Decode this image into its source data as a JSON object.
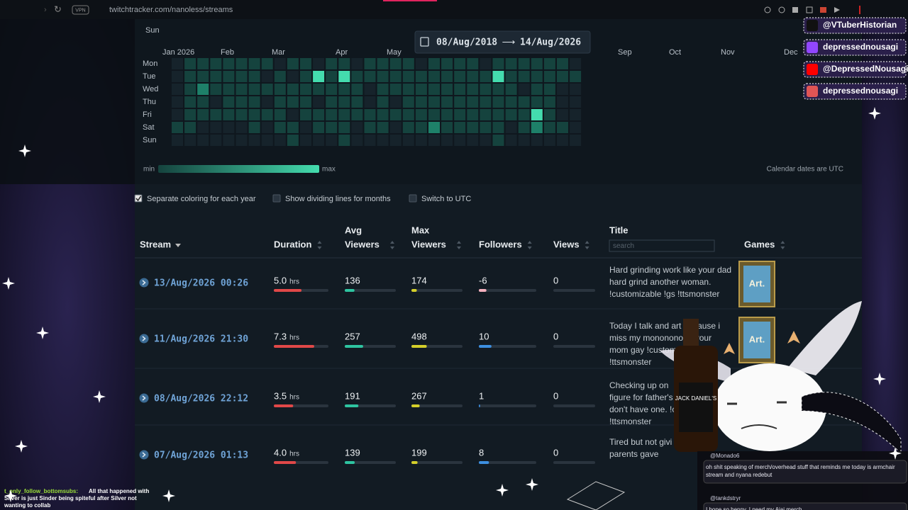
{
  "browser": {
    "url": "twitchtracker.com/nanoless/streams",
    "vpn": "VPN"
  },
  "heatmap": {
    "top_day": "Sun",
    "days": [
      "Mon",
      "Tue",
      "Wed",
      "Thu",
      "Fri",
      "Sat",
      "Sun"
    ],
    "months": [
      "Jan 2026",
      "Feb",
      "Mar",
      "Apr",
      "May",
      "Sep",
      "Oct",
      "Nov",
      "Dec"
    ],
    "level_colors": [
      "#16232b",
      "#15433e",
      "#1e8069",
      "#44dcae"
    ],
    "levels": [
      [
        0,
        1,
        1,
        1,
        1,
        1,
        1,
        1,
        0,
        1,
        1,
        0,
        1,
        1,
        0,
        1,
        1,
        1,
        1,
        0,
        1,
        1,
        1,
        1,
        0,
        1,
        1,
        1,
        1,
        1,
        1,
        0
      ],
      [
        0,
        1,
        1,
        1,
        1,
        1,
        1,
        0,
        1,
        0,
        1,
        3,
        1,
        3,
        1,
        1,
        1,
        1,
        1,
        1,
        1,
        1,
        1,
        1,
        1,
        3,
        1,
        1,
        1,
        1,
        1,
        1
      ],
      [
        0,
        1,
        2,
        1,
        1,
        1,
        1,
        1,
        1,
        1,
        1,
        1,
        1,
        1,
        1,
        0,
        1,
        1,
        1,
        1,
        1,
        1,
        1,
        1,
        1,
        1,
        1,
        0,
        1,
        1,
        0,
        0
      ],
      [
        0,
        1,
        1,
        0,
        1,
        1,
        1,
        0,
        1,
        1,
        1,
        0,
        1,
        1,
        1,
        0,
        1,
        0,
        1,
        1,
        1,
        1,
        1,
        1,
        1,
        1,
        1,
        1,
        1,
        1,
        0,
        0
      ],
      [
        0,
        1,
        1,
        1,
        1,
        1,
        1,
        1,
        1,
        0,
        1,
        1,
        1,
        1,
        1,
        1,
        1,
        1,
        1,
        1,
        1,
        1,
        1,
        1,
        1,
        1,
        1,
        1,
        3,
        1,
        0,
        0
      ],
      [
        1,
        1,
        0,
        0,
        0,
        0,
        1,
        0,
        1,
        1,
        0,
        1,
        1,
        1,
        0,
        1,
        1,
        0,
        1,
        1,
        2,
        1,
        1,
        1,
        1,
        1,
        0,
        1,
        2,
        1,
        1,
        0
      ],
      [
        0,
        0,
        0,
        0,
        0,
        0,
        0,
        0,
        0,
        1,
        0,
        0,
        0,
        1,
        0,
        0,
        0,
        0,
        0,
        0,
        0,
        0,
        0,
        0,
        0,
        1,
        0,
        0,
        0,
        0,
        0,
        0
      ]
    ],
    "date_range": {
      "from": "08/Aug/2018",
      "arrow": "⟶",
      "to": "14/Aug/2026"
    },
    "legend": {
      "min": "min",
      "max": "max"
    },
    "note": "Calendar dates are UTC"
  },
  "options": [
    {
      "label": "Separate coloring for each year",
      "checked": true
    },
    {
      "label": "Show dividing lines for months",
      "checked": false
    },
    {
      "label": "Switch to UTC",
      "checked": false
    }
  ],
  "table": {
    "headers": {
      "stream": "Stream",
      "duration": "Duration",
      "avg_viewers": [
        "Avg",
        "Viewers"
      ],
      "max_viewers": [
        "Max",
        "Viewers"
      ],
      "followers": "Followers",
      "views": "Views",
      "title": "Title",
      "games": "Games"
    },
    "search_placeholder": "search",
    "unit": "hrs",
    "bar_colors": {
      "duration": "#e04848",
      "avg_viewers": "#2ec4a0",
      "max_viewers": "#d4cf2a",
      "followers_negative": "#f4b0bd",
      "followers_positive": "#3d8fe0"
    },
    "rows": [
      {
        "stream": "13/Aug/2026 00:26",
        "duration": 5,
        "duration_label": "5.0",
        "avg_viewers": 136,
        "max_viewers": 174,
        "followers": -6,
        "views": 0,
        "title_lines": [
          "Hard grinding work like your dad",
          "hard grind another woman.",
          "!customizable !gs !ttsmonster"
        ],
        "game": "Art."
      },
      {
        "stream": "11/Aug/2026 21:30",
        "duration": 7.3,
        "duration_label": "7.3",
        "avg_viewers": 257,
        "max_viewers": 498,
        "followers": 10,
        "views": 0,
        "title_lines": [
          "Today I talk and art because i",
          "miss my monononono your",
          "mom gay !customizable !",
          "!ttsmonster"
        ],
        "game": "Art."
      },
      {
        "stream": "08/Aug/2026 22:12",
        "duration": 3.5,
        "duration_label": "3.5",
        "avg_viewers": 191,
        "max_viewers": 267,
        "followers": 1,
        "views": 0,
        "title_lines": [
          "Checking up on",
          "figure for father's",
          "don't have one. !c",
          "!ttsmonster"
        ]
      },
      {
        "stream": "07/Aug/2026 01:13",
        "duration": 4,
        "duration_label": "4.0",
        "avg_viewers": 139,
        "max_viewers": 199,
        "followers": 8,
        "views": 0,
        "title_lines": [
          "Tired but not givi",
          "parents gave"
        ]
      }
    ]
  },
  "socials": [
    {
      "icon": "X",
      "handle": "@VTuberHistorian"
    },
    {
      "icon": "twitch",
      "handle": "depressednousagi"
    },
    {
      "icon": "youtube",
      "handle": "@DepressedNousagi"
    },
    {
      "icon": "other",
      "handle": "depressednousagi"
    }
  ],
  "chat_left": {
    "user": "t_only_follow_bottomsubs:",
    "lines": [
      "All that happened with",
      "Silver is just Sinder being spiteful after Silver not",
      "wanting to collab"
    ]
  },
  "chat_right": [
    {
      "user": "@Monado6",
      "lines": [
        "oh shit speaking of merch/overhead stuff that reminds me today is armchair",
        "stream and nyana redebut"
      ]
    },
    {
      "user": "@tankdstryr",
      "lines": [
        "I hope so henny. I need my Aiai merch"
      ]
    }
  ]
}
